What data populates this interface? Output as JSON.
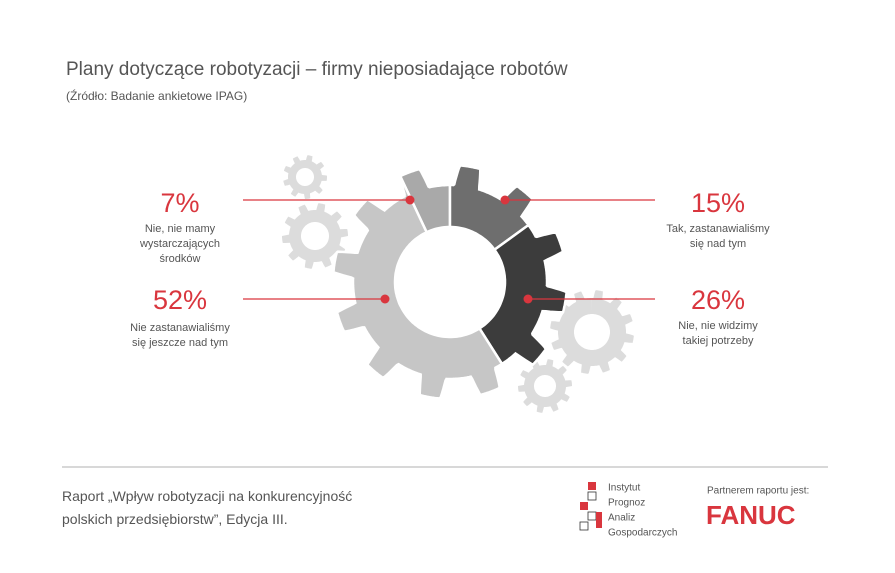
{
  "chart_data": {
    "type": "pie",
    "title": "Plany dotyczące robotyzacji – firmy nieposiadające robotów",
    "subtitle": "(Źródło: Badanie ankietowe IPAG)",
    "categories": [
      "Nie, nie mamy\nwystarczających\nśrodków",
      "Tak, zastanawialiśmy\nsię nad tym",
      "Nie, nie widzimy\ntakiej potrzeby",
      "Nie zastanawialiśmy\nsię jeszcze nad tym"
    ],
    "values": [
      7,
      15,
      26,
      52
    ],
    "value_labels": [
      "7%",
      "15%",
      "26%",
      "52%"
    ],
    "colors": [
      "#a9a9a9",
      "#6e6e6e",
      "#3c3c3c",
      "#c6c6c6"
    ],
    "label_color": "#d9363e"
  },
  "footer": {
    "report": "Raport „Wpływ robotyzacji na konkurencyjność\npolskich przedsiębiorstw”, Edycja III.",
    "institute": [
      "Instytut",
      "Prognoz",
      "Analiz",
      "Gospodarczych"
    ],
    "partner": "Partnerem raportu jest:",
    "partner_logo": "FANUC"
  }
}
